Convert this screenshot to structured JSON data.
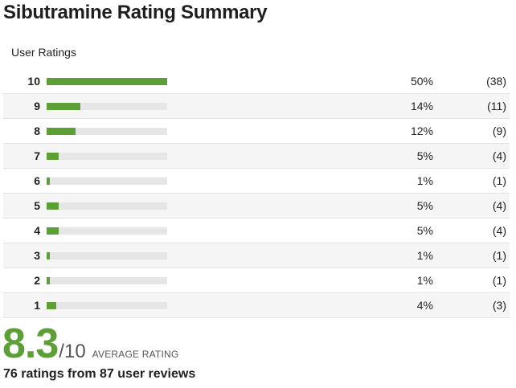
{
  "title": "Sibutramine Rating Summary",
  "subtitle": "User Ratings",
  "colors": {
    "bar_fill": "#5b9f36",
    "bar_track": "#e6e6e6",
    "score": "#5b9f36"
  },
  "ratings": [
    {
      "label": "10",
      "fraction": 0.5,
      "percent": "50%",
      "count": "(38)"
    },
    {
      "label": "9",
      "fraction": 0.14,
      "percent": "14%",
      "count": "(11)"
    },
    {
      "label": "8",
      "fraction": 0.12,
      "percent": "12%",
      "count": "(9)"
    },
    {
      "label": "7",
      "fraction": 0.05,
      "percent": "5%",
      "count": "(4)"
    },
    {
      "label": "6",
      "fraction": 0.01,
      "percent": "1%",
      "count": "(1)"
    },
    {
      "label": "5",
      "fraction": 0.05,
      "percent": "5%",
      "count": "(4)"
    },
    {
      "label": "4",
      "fraction": 0.05,
      "percent": "5%",
      "count": "(4)"
    },
    {
      "label": "3",
      "fraction": 0.01,
      "percent": "1%",
      "count": "(1)"
    },
    {
      "label": "2",
      "fraction": 0.01,
      "percent": "1%",
      "count": "(1)"
    },
    {
      "label": "1",
      "fraction": 0.04,
      "percent": "4%",
      "count": "(3)"
    }
  ],
  "average": {
    "score": "8.3",
    "out_of": "/10",
    "label": "AVERAGE RATING"
  },
  "summary": "76 ratings from 87 user reviews"
}
